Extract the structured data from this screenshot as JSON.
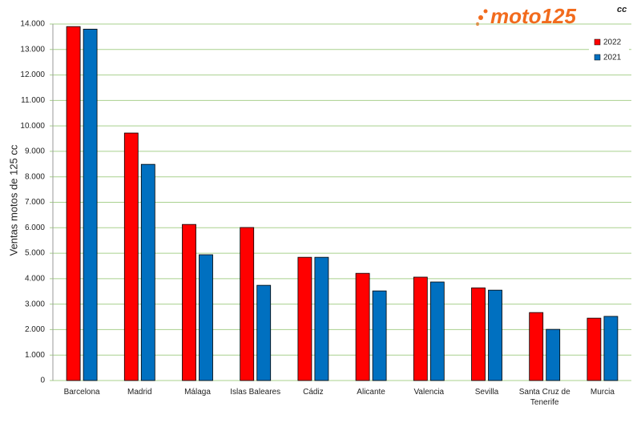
{
  "logo": {
    "text": "moto125",
    "suffix": "cc"
  },
  "chart_data": {
    "type": "bar",
    "ylabel": "Ventas motos de 125 cc",
    "categories": [
      "Barcelona",
      "Madrid",
      "Málaga",
      "Islas Baleares",
      "Cádiz",
      "Alicante",
      "Valencia",
      "Sevilla",
      "Santa Cruz de Tenerife",
      "Murcia"
    ],
    "series": [
      {
        "name": "2022",
        "color": "#ff0000",
        "values": [
          13900,
          9720,
          6130,
          6010,
          4840,
          4210,
          4060,
          3640,
          2670,
          2450
        ]
      },
      {
        "name": "2021",
        "color": "#0070c0",
        "values": [
          13800,
          8490,
          4940,
          3740,
          4840,
          3520,
          3870,
          3550,
          2010,
          2520
        ]
      }
    ],
    "ylim": [
      0,
      14000
    ],
    "yticks": [
      0,
      {
        "value": 1000,
        "label": "1.000"
      },
      {
        "value": 2000,
        "label": "2.000"
      },
      {
        "value": 3000,
        "label": "3.000"
      },
      {
        "value": 4000,
        "label": "4.000"
      },
      {
        "value": 5000,
        "label": "5.000"
      },
      {
        "value": 6000,
        "label": "6.000"
      },
      {
        "value": 7000,
        "label": "7.000"
      },
      {
        "value": 8000,
        "label": "8.000"
      },
      {
        "value": 9000,
        "label": "9.000"
      },
      {
        "value": 10000,
        "label": "10.000"
      },
      {
        "value": 11000,
        "label": "11.000"
      },
      {
        "value": 12000,
        "label": "12.000"
      },
      {
        "value": 13000,
        "label": "13.000"
      },
      {
        "value": 14000,
        "label": "14.000"
      }
    ],
    "grid": true,
    "legend": "upper right"
  }
}
